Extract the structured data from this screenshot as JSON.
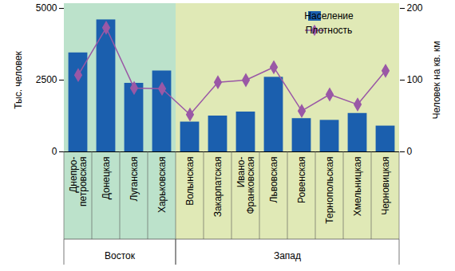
{
  "chart_data": {
    "type": "bar",
    "categories": [
      "Днепро-\nпетровская",
      "Донецкая",
      "Луганская",
      "Харьковская",
      "Волынская",
      "Закарпатская",
      "Ивано-\nФранковская",
      "Львовская",
      "Ровенская",
      "Тернопольская",
      "Хмельницкая",
      "Черновицкая"
    ],
    "series": [
      {
        "name": "Население",
        "type": "bar",
        "color": "#1b5fae",
        "values": [
          3450,
          4600,
          2390,
          2820,
          1040,
          1250,
          1390,
          2600,
          1160,
          1100,
          1340,
          900
        ]
      },
      {
        "name": "Плотность",
        "type": "line",
        "axis": "y2",
        "color": "#9a58a6",
        "marker": "diamond",
        "values": [
          107,
          173,
          89,
          88,
          52,
          97,
          100,
          118,
          57,
          80,
          66,
          113
        ]
      }
    ],
    "ylabel": "Тыс. человек",
    "y2label": "Человек на кв. км",
    "ylim": [
      0,
      5000
    ],
    "yticks": [
      0,
      2500,
      5000
    ],
    "y2lim": [
      0,
      200
    ],
    "y2ticks": [
      0,
      100,
      200
    ],
    "legend": "upper right",
    "groups": [
      {
        "label": "Восток",
        "color": "#bce2cb",
        "categories": [
          "Днепро-\nпетровская",
          "Донецкая",
          "Луганская",
          "Харьковская"
        ]
      },
      {
        "label": "Запад",
        "color": "#e0e9b6",
        "categories": [
          "Волынская",
          "Закарпатская",
          "Ивано-\nФранковская",
          "Львовская",
          "Ровенская",
          "Тернопольская",
          "Хмельницкая",
          "Черновицкая"
        ]
      }
    ]
  }
}
